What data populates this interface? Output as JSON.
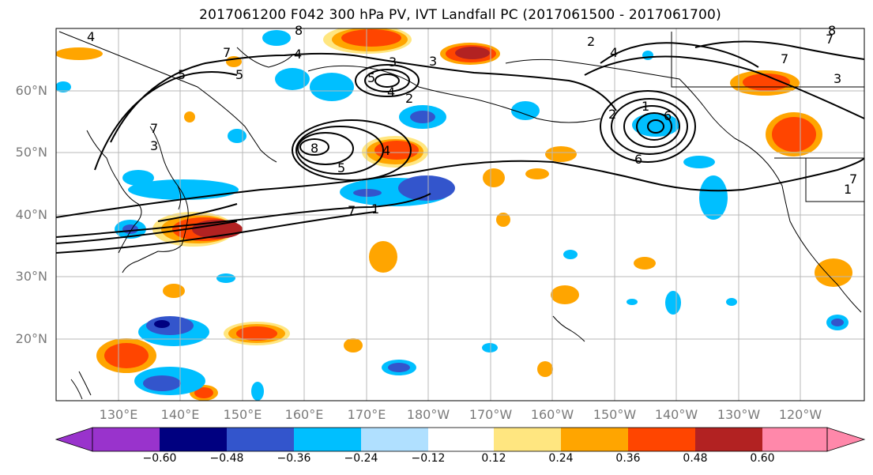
{
  "figure": {
    "title": "2017061200 F042 300 hPa PV, IVT Landfall PC (2017061500 - 2017061700)"
  },
  "axes": {
    "lat_labels": [
      "60°N",
      "50°N",
      "40°N",
      "30°N",
      "20°N"
    ],
    "lon_labels": [
      "130°E",
      "140°E",
      "150°E",
      "160°E",
      "170°E",
      "180°W",
      "170°W",
      "160°W",
      "150°W",
      "140°W",
      "130°W",
      "120°W"
    ]
  },
  "colorbar": {
    "colors": [
      "#9933cc",
      "#000080",
      "#3355cc",
      "#00bfff",
      "#b0e0ff",
      "#ffffff",
      "#ffe680",
      "#ffa500",
      "#ff4500",
      "#b22222",
      "#ff88aa"
    ],
    "tick_labels": [
      "−0.60",
      "−0.48",
      "−0.36",
      "−0.24",
      "−0.12",
      "0.12",
      "0.24",
      "0.36",
      "0.48",
      "0.60"
    ]
  },
  "contour_labels": [
    "4",
    "7",
    "8",
    "2",
    "4",
    "3",
    "5",
    "4",
    "2",
    "3",
    "7",
    "7",
    "5",
    "4",
    "3",
    "8",
    "5",
    "1",
    "7",
    "2",
    "4",
    "8",
    "6",
    "7",
    "1",
    "3",
    "7",
    "5",
    "1",
    "6"
  ]
}
